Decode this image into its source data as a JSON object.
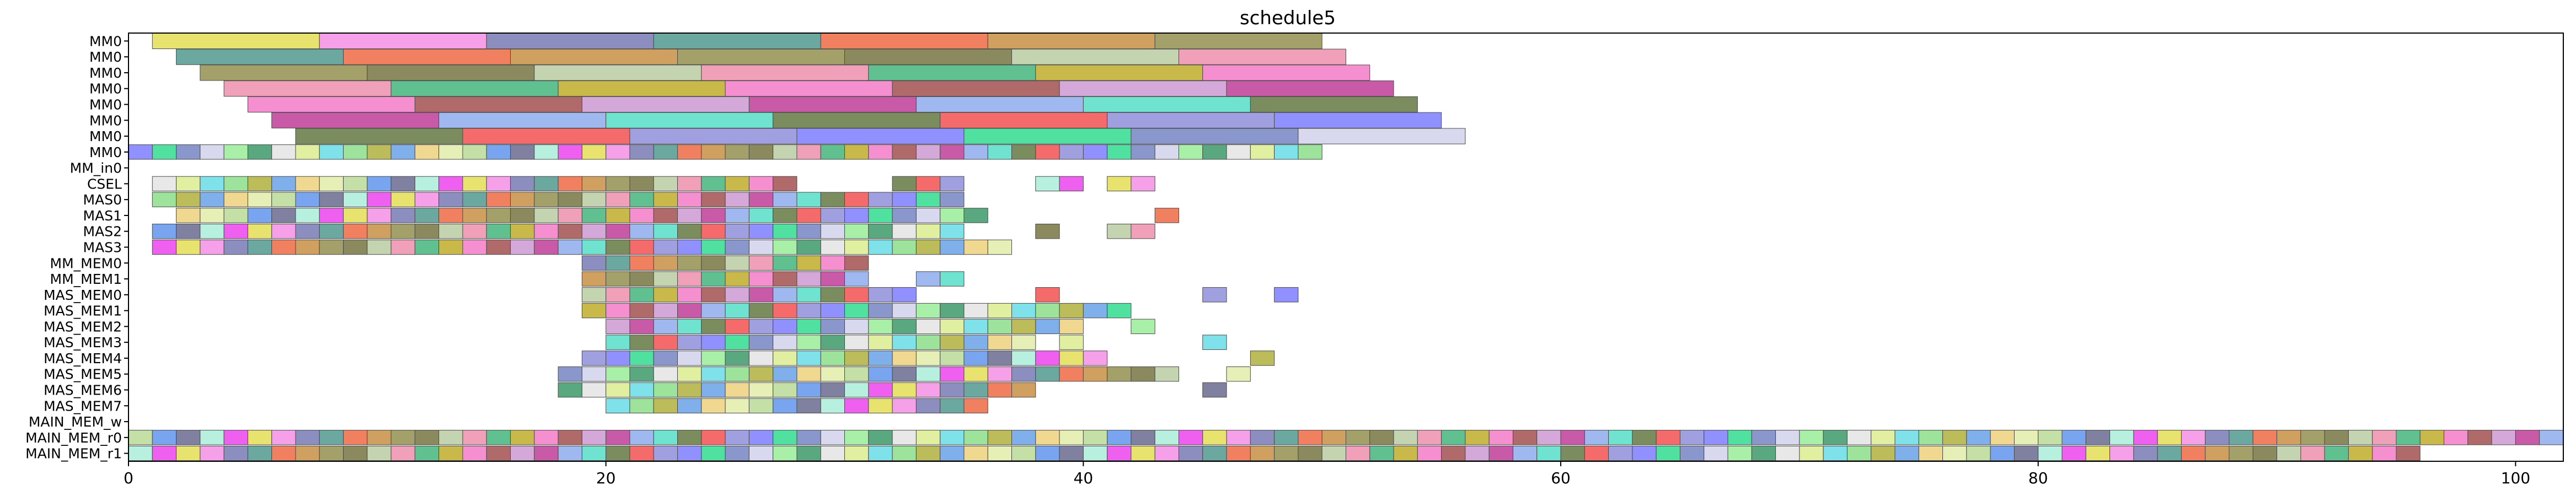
{
  "chart_data": {
    "type": "gantt",
    "title": "schedule5",
    "xlabel": "",
    "ylabel": "",
    "xlim": [
      0,
      102
    ],
    "xticks": [
      0,
      20,
      40,
      60,
      80,
      100
    ],
    "xtick_labels": [
      "0",
      "20",
      "40",
      "60",
      "80",
      "100"
    ],
    "grid": false,
    "lanes": [
      "MM0",
      "MM0",
      "MM0",
      "MM0",
      "MM0",
      "MM0",
      "MM0",
      "MM0",
      "MM_in0",
      "CSEL",
      "MAS0",
      "MAS1",
      "MAS2",
      "MAS3",
      "MM_MEM0",
      "MM_MEM1",
      "MAS_MEM0",
      "MAS_MEM1",
      "MAS_MEM2",
      "MAS_MEM3",
      "MAS_MEM4",
      "MAS_MEM5",
      "MAS_MEM6",
      "MAS_MEM7",
      "MAIN_MEM_w",
      "MAIN_MEM_r0",
      "MAIN_MEM_r1"
    ],
    "long_tasks": [
      {
        "lane": 0,
        "start": 1,
        "duration": 7,
        "count": 7
      },
      {
        "lane": 1,
        "start": 2,
        "duration": 7,
        "count": 7
      },
      {
        "lane": 2,
        "start": 3,
        "duration": 7,
        "count": 7
      },
      {
        "lane": 3,
        "start": 4,
        "duration": 7,
        "count": 7
      },
      {
        "lane": 4,
        "start": 5,
        "duration": 7,
        "count": 7
      },
      {
        "lane": 5,
        "start": 6,
        "duration": 7,
        "count": 7
      },
      {
        "lane": 6,
        "start": 7,
        "duration": 7,
        "count": 7
      }
    ],
    "short_tasks": [
      {
        "lane": 7,
        "start": 0,
        "duration": 1,
        "count": 50
      },
      {
        "lane": 9,
        "start": 1,
        "duration": 1,
        "count": 34,
        "gaps": [
          28,
          29,
          30,
          31
        ],
        "extra": [
          38,
          39,
          41,
          42
        ]
      },
      {
        "lane": 10,
        "start": 1,
        "duration": 1,
        "count": 34
      },
      {
        "lane": 11,
        "start": 2,
        "duration": 1,
        "count": 34,
        "extra": [
          43
        ]
      },
      {
        "lane": 12,
        "start": 1,
        "duration": 1,
        "count": 34,
        "extra": [
          38,
          41,
          42
        ]
      },
      {
        "lane": 13,
        "start": 1,
        "duration": 1,
        "count": 36
      },
      {
        "lane": 14,
        "start": 19,
        "duration": 1,
        "count": 12
      },
      {
        "lane": 15,
        "start": 19,
        "duration": 1,
        "count": 12,
        "extra": [
          33,
          34
        ]
      },
      {
        "lane": 16,
        "start": 19,
        "duration": 1,
        "count": 14,
        "extra": [
          38,
          45,
          48
        ]
      },
      {
        "lane": 17,
        "start": 19,
        "duration": 1,
        "count": 22,
        "extra": [
          41
        ]
      },
      {
        "lane": 18,
        "start": 20,
        "duration": 1,
        "count": 20,
        "extra": [
          42
        ]
      },
      {
        "lane": 19,
        "start": 20,
        "duration": 1,
        "count": 18,
        "extra": [
          39,
          45
        ]
      },
      {
        "lane": 20,
        "start": 19,
        "duration": 1,
        "count": 22,
        "extra": [
          47
        ]
      },
      {
        "lane": 21,
        "start": 18,
        "duration": 1,
        "count": 26,
        "extra": [
          46
        ]
      },
      {
        "lane": 22,
        "start": 18,
        "duration": 1,
        "count": 20,
        "extra": [
          45
        ]
      },
      {
        "lane": 23,
        "start": 20,
        "duration": 1,
        "count": 16
      },
      {
        "lane": 25,
        "start": 0,
        "duration": 1,
        "count": 102
      },
      {
        "lane": 26,
        "start": 0,
        "duration": 1,
        "count": 96
      }
    ]
  }
}
